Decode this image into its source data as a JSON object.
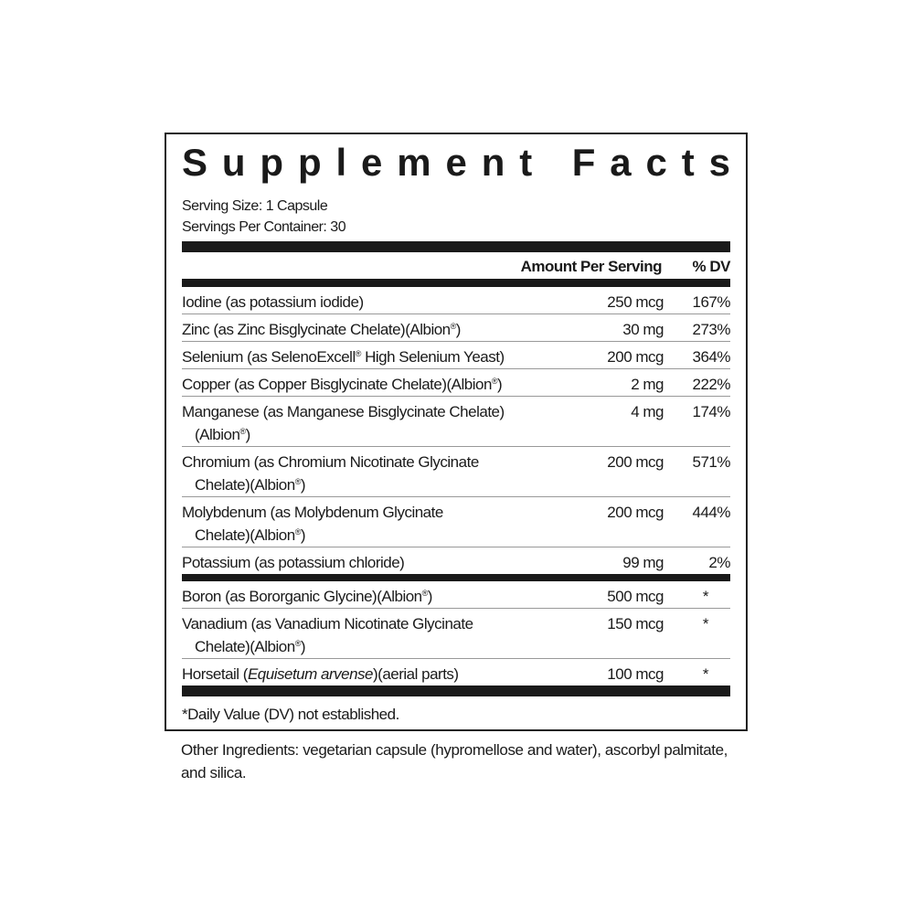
{
  "title": "Supplement Facts",
  "serving_size": "Serving Size: 1 Capsule",
  "servings_per_container": "Servings Per Container: 30",
  "header": {
    "amount": "Amount Per Serving",
    "dv": "% DV"
  },
  "rows_group1": [
    {
      "name": [
        "Iodine (as potassium iodide)"
      ],
      "amount": "250 mcg",
      "dv": "167%"
    },
    {
      "name": [
        "Zinc (as Zinc Bisglycinate Chelate)(Albion®)"
      ],
      "amount": "30 mg",
      "dv": "273%"
    },
    {
      "name": [
        "Selenium (as SelenoExcell® High Selenium Yeast)"
      ],
      "amount": "200 mcg",
      "dv": "364%"
    },
    {
      "name": [
        "Copper (as Copper Bisglycinate Chelate)(Albion®)"
      ],
      "amount": "2 mg",
      "dv": "222%"
    },
    {
      "name": [
        "Manganese (as Manganese Bisglycinate Chelate)",
        "(Albion®)"
      ],
      "amount": "4 mg",
      "dv": "174%"
    },
    {
      "name": [
        "Chromium (as Chromium Nicotinate Glycinate",
        "Chelate)(Albion®)"
      ],
      "amount": "200 mcg",
      "dv": "571%"
    },
    {
      "name": [
        "Molybdenum (as Molybdenum Glycinate",
        "Chelate)(Albion®)"
      ],
      "amount": "200 mcg",
      "dv": "444%"
    },
    {
      "name": [
        "Potassium (as potassium chloride)"
      ],
      "amount": "99 mg",
      "dv": "2%"
    }
  ],
  "rows_group2": [
    {
      "name": [
        "Boron (as Bororganic Glycine)(Albion®)"
      ],
      "amount": "500 mcg",
      "dv": "*"
    },
    {
      "name": [
        "Vanadium (as Vanadium Nicotinate Glycinate",
        "Chelate)(Albion®)"
      ],
      "amount": "150 mcg",
      "dv": "*"
    },
    {
      "name": [
        "Horsetail (",
        "Equisetum arvense",
        ")(aerial parts)"
      ],
      "amount": "100 mcg",
      "dv": "*",
      "italic_index": 1
    }
  ],
  "footnote": "*Daily Value (DV) not established.",
  "other_ingredients": "Other Ingredients: vegetarian capsule (hypromellose and water), ascorbyl palmitate, and silica."
}
